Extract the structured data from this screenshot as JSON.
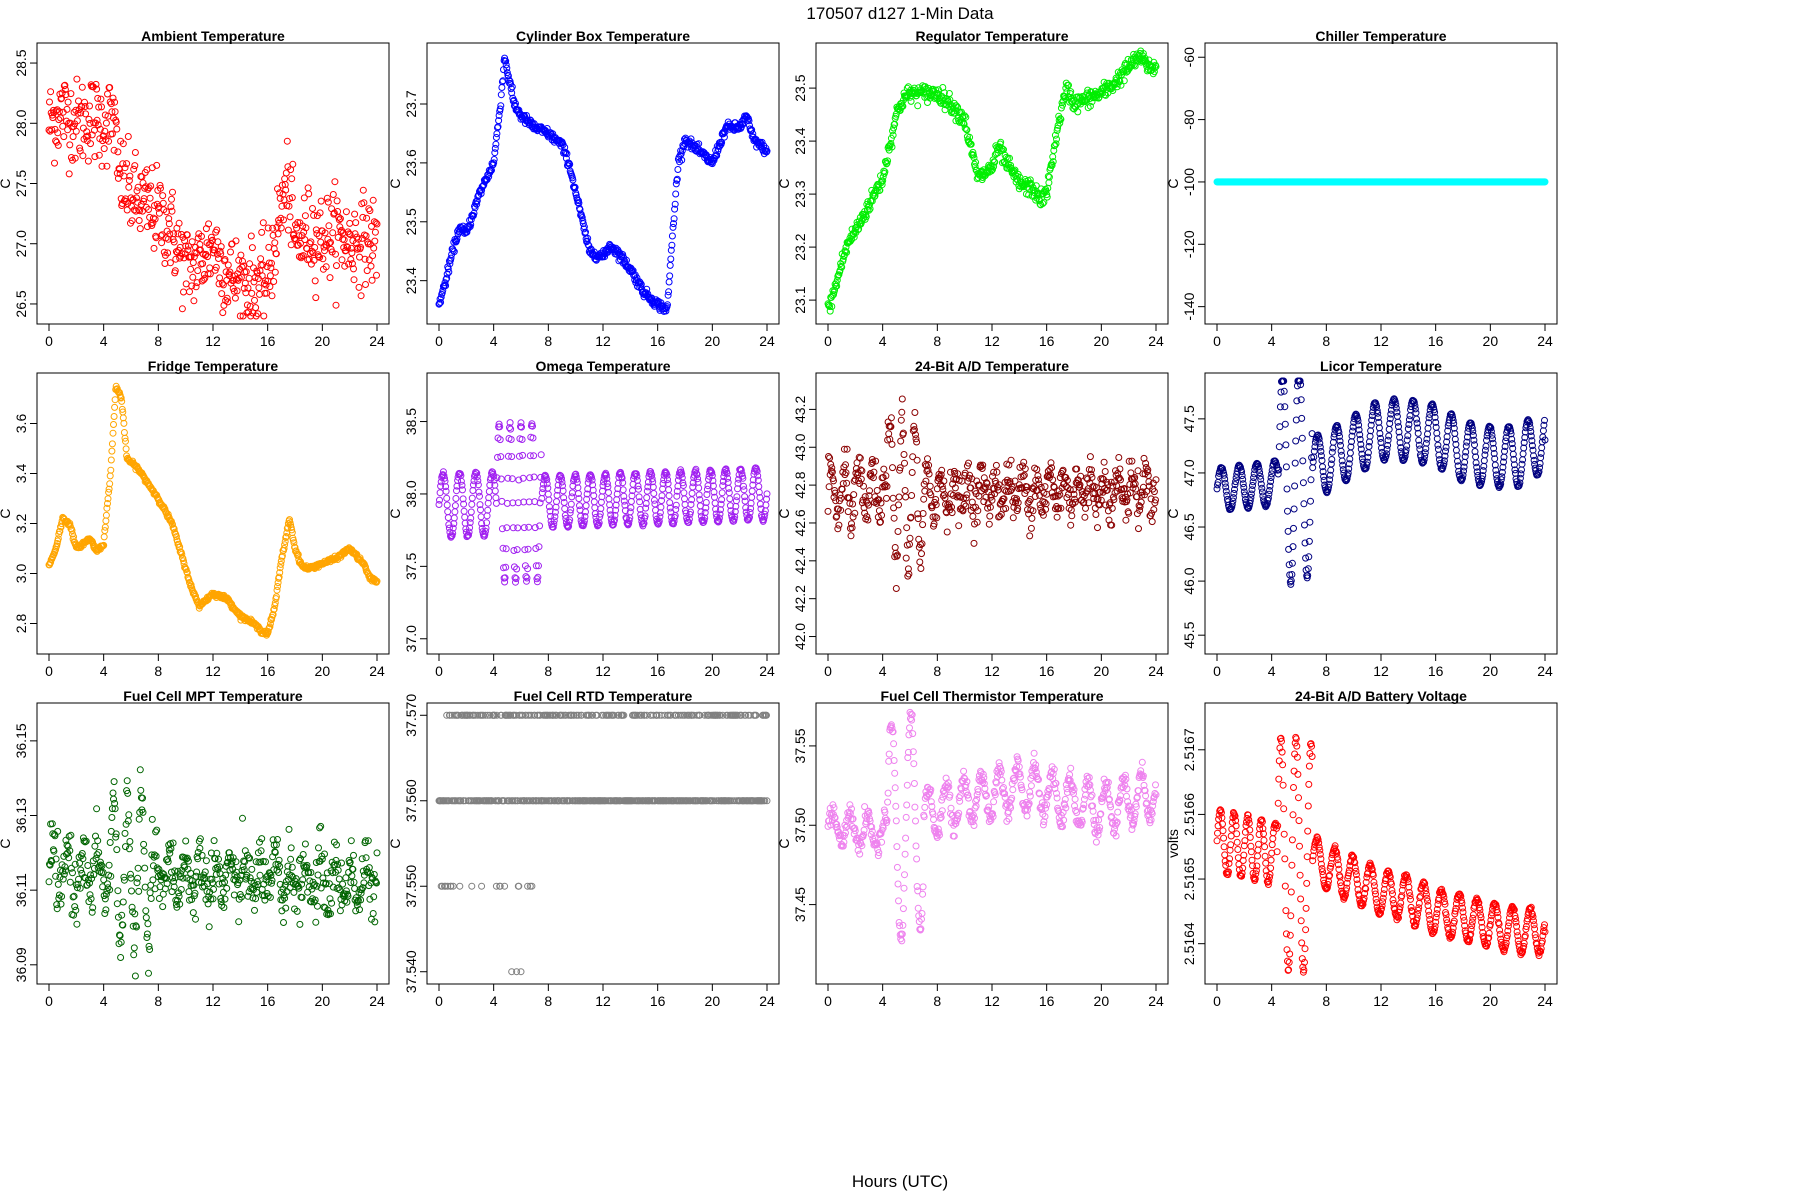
{
  "figure": {
    "suptitle": "170507   d127   1-Min Data",
    "xlabel": "Hours (UTC)"
  },
  "chart_data": [
    {
      "type": "scatter",
      "title": "Ambient Temperature",
      "ylabel": "C",
      "color": "#ff0000",
      "xlim": [
        0,
        24
      ],
      "ylim": [
        26.4,
        28.6
      ],
      "xticks": [
        0,
        4,
        8,
        12,
        16,
        20,
        24
      ],
      "yticks": [
        26.5,
        27.0,
        27.5,
        28.0,
        28.5
      ],
      "ytick_labels": [
        "26.5",
        "27.0",
        "27.5",
        "28.0",
        "28.5"
      ],
      "noise": 0.18,
      "keypoints": [
        [
          0,
          28.0
        ],
        [
          1,
          28.1
        ],
        [
          2,
          28.0
        ],
        [
          3,
          28.05
        ],
        [
          4,
          28.0
        ],
        [
          4.8,
          28.05
        ],
        [
          5,
          27.6
        ],
        [
          6,
          27.4
        ],
        [
          8,
          27.25
        ],
        [
          9,
          27.1
        ],
        [
          10,
          26.8
        ],
        [
          11,
          26.85
        ],
        [
          12,
          27.0
        ],
        [
          13,
          26.75
        ],
        [
          14,
          26.7
        ],
        [
          15,
          26.65
        ],
        [
          16,
          26.7
        ],
        [
          16.5,
          27.0
        ],
        [
          17,
          27.3
        ],
        [
          17.5,
          27.5
        ],
        [
          18,
          27.0
        ],
        [
          19,
          27.1
        ],
        [
          20,
          27.05
        ],
        [
          21,
          27.1
        ],
        [
          22,
          27.0
        ],
        [
          23,
          27.05
        ],
        [
          24,
          27.0
        ]
      ]
    },
    {
      "type": "scatter",
      "title": "Cylinder Box Temperature",
      "ylabel": "C",
      "color": "#0000ff",
      "xlim": [
        0,
        24
      ],
      "ylim": [
        23.34,
        23.79
      ],
      "xticks": [
        0,
        4,
        8,
        12,
        16,
        20,
        24
      ],
      "yticks": [
        23.4,
        23.5,
        23.6,
        23.7
      ],
      "ytick_labels": [
        "23.4",
        "23.5",
        "23.6",
        "23.7"
      ],
      "noise": 0.004,
      "keypoints": [
        [
          0,
          23.36
        ],
        [
          0.5,
          23.4
        ],
        [
          1,
          23.45
        ],
        [
          1.5,
          23.49
        ],
        [
          2,
          23.48
        ],
        [
          3,
          23.55
        ],
        [
          4,
          23.6
        ],
        [
          4.5,
          23.7
        ],
        [
          4.8,
          23.78
        ],
        [
          5.5,
          23.7
        ],
        [
          6,
          23.68
        ],
        [
          7,
          23.66
        ],
        [
          8,
          23.65
        ],
        [
          9,
          23.63
        ],
        [
          9.5,
          23.6
        ],
        [
          10,
          23.55
        ],
        [
          10.5,
          23.5
        ],
        [
          11,
          23.45
        ],
        [
          12,
          23.44
        ],
        [
          12.5,
          23.46
        ],
        [
          13,
          23.45
        ],
        [
          14,
          23.42
        ],
        [
          15,
          23.38
        ],
        [
          16,
          23.36
        ],
        [
          16.7,
          23.35
        ],
        [
          17,
          23.45
        ],
        [
          17.5,
          23.6
        ],
        [
          18,
          23.64
        ],
        [
          19,
          23.62
        ],
        [
          20,
          23.6
        ],
        [
          21,
          23.66
        ],
        [
          22,
          23.66
        ],
        [
          22.5,
          23.68
        ],
        [
          23,
          23.64
        ],
        [
          24,
          23.62
        ]
      ]
    },
    {
      "type": "scatter",
      "title": "Regulator Temperature",
      "ylabel": "C",
      "color": "#00ee00",
      "xlim": [
        0,
        24
      ],
      "ylim": [
        23.07,
        23.57
      ],
      "xticks": [
        0,
        4,
        8,
        12,
        16,
        20,
        24
      ],
      "yticks": [
        23.1,
        23.2,
        23.3,
        23.4,
        23.5
      ],
      "ytick_labels": [
        "23.1",
        "23.2",
        "23.3",
        "23.4",
        "23.5"
      ],
      "noise": 0.008,
      "keypoints": [
        [
          0,
          23.08
        ],
        [
          0.5,
          23.12
        ],
        [
          1,
          23.17
        ],
        [
          1.5,
          23.21
        ],
        [
          2,
          23.23
        ],
        [
          3,
          23.28
        ],
        [
          4,
          23.33
        ],
        [
          5,
          23.45
        ],
        [
          5.5,
          23.48
        ],
        [
          6,
          23.49
        ],
        [
          7,
          23.49
        ],
        [
          8,
          23.49
        ],
        [
          9,
          23.47
        ],
        [
          10,
          23.44
        ],
        [
          10.5,
          23.38
        ],
        [
          11,
          23.33
        ],
        [
          12,
          23.35
        ],
        [
          12.5,
          23.39
        ],
        [
          13,
          23.36
        ],
        [
          14,
          23.32
        ],
        [
          15,
          23.31
        ],
        [
          15.5,
          23.29
        ],
        [
          16,
          23.3
        ],
        [
          16.5,
          23.38
        ],
        [
          17,
          23.45
        ],
        [
          17.5,
          23.5
        ],
        [
          18,
          23.47
        ],
        [
          19,
          23.48
        ],
        [
          20,
          23.49
        ],
        [
          21,
          23.51
        ],
        [
          22,
          23.54
        ],
        [
          22.8,
          23.56
        ],
        [
          23.5,
          23.54
        ],
        [
          24,
          23.54
        ]
      ]
    },
    {
      "type": "scatter",
      "title": "Chiller Temperature",
      "ylabel": "C",
      "color": "#00ffff",
      "xlim": [
        0,
        24
      ],
      "ylim": [
        -143,
        -58
      ],
      "xticks": [
        0,
        4,
        8,
        12,
        16,
        20,
        24
      ],
      "yticks": [
        -140,
        -120,
        -100,
        -80,
        -60
      ],
      "ytick_labels": [
        "-140",
        "-120",
        "-100",
        "-80",
        "-60"
      ],
      "noise": 0,
      "keypoints": [
        [
          0,
          -100
        ],
        [
          24,
          -100
        ]
      ]
    },
    {
      "type": "scatter",
      "title": "Fridge Temperature",
      "ylabel": "C",
      "color": "#ffa500",
      "xlim": [
        0,
        24
      ],
      "ylim": [
        2.71,
        3.77
      ],
      "xticks": [
        0,
        4,
        8,
        12,
        16,
        20,
        24
      ],
      "yticks": [
        2.8,
        3.0,
        3.2,
        3.4,
        3.6
      ],
      "ytick_labels": [
        "2.8",
        "3.0",
        "3.2",
        "3.4",
        "3.6"
      ],
      "noise": 0.004,
      "keypoints": [
        [
          0,
          3.03
        ],
        [
          0.5,
          3.1
        ],
        [
          1,
          3.22
        ],
        [
          1.5,
          3.2
        ],
        [
          2,
          3.1
        ],
        [
          3,
          3.14
        ],
        [
          3.5,
          3.09
        ],
        [
          4,
          3.12
        ],
        [
          4.5,
          3.4
        ],
        [
          4.9,
          3.75
        ],
        [
          5.3,
          3.7
        ],
        [
          5.7,
          3.46
        ],
        [
          6.5,
          3.42
        ],
        [
          7,
          3.38
        ],
        [
          8,
          3.3
        ],
        [
          9,
          3.2
        ],
        [
          10,
          3.02
        ],
        [
          10.5,
          2.93
        ],
        [
          11,
          2.87
        ],
        [
          12,
          2.92
        ],
        [
          13,
          2.9
        ],
        [
          14,
          2.83
        ],
        [
          15,
          2.8
        ],
        [
          15.5,
          2.77
        ],
        [
          16,
          2.76
        ],
        [
          16.5,
          2.86
        ],
        [
          17,
          3.05
        ],
        [
          17.6,
          3.22
        ],
        [
          18,
          3.1
        ],
        [
          18.5,
          3.03
        ],
        [
          19,
          3.02
        ],
        [
          20,
          3.04
        ],
        [
          21,
          3.06
        ],
        [
          22,
          3.1
        ],
        [
          23,
          3.04
        ],
        [
          23.5,
          2.98
        ],
        [
          24,
          2.97
        ]
      ]
    },
    {
      "type": "scatter",
      "title": "Omega Temperature",
      "ylabel": "C",
      "color": "#a020f0",
      "xlim": [
        0,
        24
      ],
      "ylim": [
        36.95,
        38.78
      ],
      "xticks": [
        0,
        4,
        8,
        12,
        16,
        20,
        24
      ],
      "yticks": [
        37.0,
        37.5,
        38.0,
        38.5
      ],
      "ytick_labels": [
        "37.0",
        "37.5",
        "38.0",
        "38.5"
      ],
      "noise": 0.005,
      "keypoints": [
        [
          0,
          37.92
        ],
        [
          24,
          38.0
        ]
      ],
      "waves": [
        {
          "period": 1.2,
          "amp": 0.22,
          "start": 0,
          "end": 4.2
        },
        {
          "period": 0.8,
          "amp": 0.55,
          "start": 4.2,
          "end": 7.5
        },
        {
          "period": 1.1,
          "amp": 0.18,
          "start": 7.5,
          "end": 24
        }
      ]
    },
    {
      "type": "scatter",
      "title": "24-Bit A/D Temperature",
      "ylabel": "C",
      "color": "#8b0000",
      "xlim": [
        0,
        24
      ],
      "ylim": [
        41.95,
        43.35
      ],
      "xticks": [
        0,
        4,
        8,
        12,
        16,
        20,
        24
      ],
      "yticks": [
        42.0,
        42.2,
        42.4,
        42.6,
        42.8,
        43.0,
        43.2
      ],
      "ytick_labels": [
        "42.0",
        "42.2",
        "42.4",
        "42.6",
        "42.8",
        "43.0",
        "43.2"
      ],
      "noise": 0.06,
      "keypoints": [
        [
          0,
          42.75
        ],
        [
          24,
          42.78
        ]
      ],
      "waves": [
        {
          "period": 1.0,
          "amp": 0.12,
          "start": 0,
          "end": 4.3
        },
        {
          "period": 0.9,
          "amp": 0.4,
          "start": 4.3,
          "end": 7.0
        },
        {
          "period": 1.0,
          "amp": 0.08,
          "start": 7.0,
          "end": 24
        }
      ]
    },
    {
      "type": "scatter",
      "title": "Licor Temperature",
      "ylabel": "C",
      "color": "#000080",
      "xlim": [
        0,
        24
      ],
      "ylim": [
        45.4,
        47.85
      ],
      "xticks": [
        0,
        4,
        8,
        12,
        16,
        20,
        24
      ],
      "yticks": [
        45.5,
        46.0,
        46.5,
        47.0,
        47.5
      ],
      "ytick_labels": [
        "45.5",
        "46.0",
        "46.5",
        "47.0",
        "47.5"
      ],
      "noise": 0.004,
      "keypoints": [
        [
          0,
          46.85
        ],
        [
          4,
          46.9
        ],
        [
          6,
          47.0
        ],
        [
          8,
          47.1
        ],
        [
          10,
          47.25
        ],
        [
          12,
          47.4
        ],
        [
          14,
          47.4
        ],
        [
          16,
          47.35
        ],
        [
          18,
          47.2
        ],
        [
          20,
          47.15
        ],
        [
          22,
          47.15
        ],
        [
          24,
          47.3
        ]
      ],
      "waves": [
        {
          "period": 1.3,
          "amp": 0.2,
          "start": 0,
          "end": 4.5
        },
        {
          "period": 1.2,
          "amp": 1.0,
          "start": 4.5,
          "end": 7.0
        },
        {
          "period": 1.4,
          "amp": 0.28,
          "start": 7.0,
          "end": 24
        }
      ]
    },
    {
      "type": "scatter",
      "title": "Fuel Cell MPT Temperature",
      "ylabel": "C",
      "color": "#006400",
      "xlim": [
        0,
        24
      ],
      "ylim": [
        36.087,
        36.158
      ],
      "xticks": [
        0,
        4,
        8,
        12,
        16,
        20,
        24
      ],
      "yticks": [
        36.09,
        36.11,
        36.13,
        36.15
      ],
      "ytick_labels": [
        "36.09",
        "36.11",
        "36.13",
        "36.15"
      ],
      "noise": 0.004,
      "keypoints": [
        [
          0,
          36.115
        ],
        [
          24,
          36.112
        ]
      ],
      "waves": [
        {
          "period": 1.1,
          "amp": 0.007,
          "start": 0,
          "end": 4.5
        },
        {
          "period": 1.0,
          "amp": 0.02,
          "start": 4.5,
          "end": 7.5
        },
        {
          "period": 1.1,
          "amp": 0.005,
          "start": 7.5,
          "end": 24
        }
      ]
    },
    {
      "type": "scatter",
      "title": "Fuel Cell RTD Temperature",
      "ylabel": "C",
      "color": "#808080",
      "xlim": [
        0,
        24
      ],
      "ylim": [
        37.5395,
        37.5705
      ],
      "xticks": [
        0,
        4,
        8,
        12,
        16,
        20,
        24
      ],
      "yticks": [
        37.54,
        37.55,
        37.56,
        37.57
      ],
      "ytick_labels": [
        "37.540",
        "37.550",
        "37.560",
        "37.570"
      ],
      "noise": 0,
      "keypoints": [
        [
          0,
          37.56
        ],
        [
          24,
          37.56
        ]
      ]
    },
    {
      "type": "scatter",
      "title": "Fuel Cell Thermistor Temperature",
      "ylabel": "C",
      "color": "#ee82ee",
      "xlim": [
        0,
        24
      ],
      "ylim": [
        37.405,
        37.572
      ],
      "xticks": [
        0,
        4,
        8,
        12,
        16,
        20,
        24
      ],
      "yticks": [
        37.45,
        37.5,
        37.55
      ],
      "ytick_labels": [
        "37.45",
        "37.50",
        "37.55"
      ],
      "noise": 0.003,
      "keypoints": [
        [
          0,
          37.5
        ],
        [
          4,
          37.495
        ],
        [
          6,
          37.5
        ],
        [
          8,
          37.51
        ],
        [
          10,
          37.515
        ],
        [
          12,
          37.52
        ],
        [
          14,
          37.525
        ],
        [
          16,
          37.52
        ],
        [
          18,
          37.515
        ],
        [
          20,
          37.51
        ],
        [
          22,
          37.515
        ],
        [
          24,
          37.52
        ]
      ],
      "waves": [
        {
          "period": 1.3,
          "amp": 0.01,
          "start": 0,
          "end": 4.3
        },
        {
          "period": 1.4,
          "amp": 0.07,
          "start": 4.3,
          "end": 7.0
        },
        {
          "period": 1.3,
          "amp": 0.015,
          "start": 7.0,
          "end": 24
        }
      ]
    },
    {
      "type": "scatter",
      "title": "24-Bit A/D Battery Voltage",
      "ylabel": "volts",
      "color": "#ff0000",
      "xlim": [
        0,
        24
      ],
      "ylim": [
        2.51635,
        2.51676
      ],
      "xticks": [
        0,
        4,
        8,
        12,
        16,
        20,
        24
      ],
      "yticks": [
        2.5164,
        2.5165,
        2.5166,
        2.5167
      ],
      "ytick_labels": [
        "2.5164",
        "2.5165",
        "2.5166",
        "2.5167"
      ],
      "noise": 1.5e-06,
      "keypoints": [
        [
          0,
          2.51656
        ],
        [
          4,
          2.51654
        ],
        [
          6,
          2.51654
        ],
        [
          8,
          2.51652
        ],
        [
          10,
          2.5165
        ],
        [
          12,
          2.51648
        ],
        [
          14,
          2.51647
        ],
        [
          16,
          2.51645
        ],
        [
          18,
          2.51644
        ],
        [
          20,
          2.51643
        ],
        [
          22,
          2.51642
        ],
        [
          24,
          2.51642
        ]
      ],
      "waves": [
        {
          "period": 1.0,
          "amp": 4.8e-05,
          "start": 0,
          "end": 4.4
        },
        {
          "period": 1.1,
          "amp": 0.00018,
          "start": 4.4,
          "end": 7.0
        },
        {
          "period": 1.3,
          "amp": 3.5e-05,
          "start": 7.0,
          "end": 24
        }
      ]
    }
  ]
}
